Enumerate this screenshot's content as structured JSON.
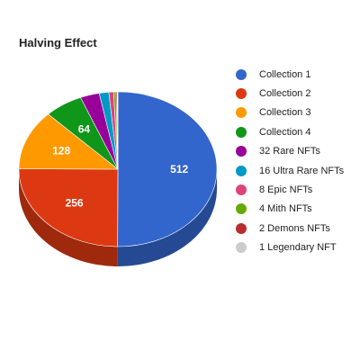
{
  "chart_data": {
    "type": "pie",
    "title": "Halving Effect",
    "three_d": true,
    "legend_position": "right",
    "slices": [
      {
        "name": "Collection 1",
        "value": 512,
        "label": "512",
        "color": "#3366cc"
      },
      {
        "name": "Collection 2",
        "value": 256,
        "label": "256",
        "color": "#dc3912"
      },
      {
        "name": "Collection 3",
        "value": 128,
        "label": "128",
        "color": "#ff9900"
      },
      {
        "name": "Collection 4",
        "value": 64,
        "label": "64",
        "color": "#109618"
      },
      {
        "name": "32 Rare NFTs",
        "value": 32,
        "label": "",
        "color": "#990099"
      },
      {
        "name": "16 Ultra Rare NFTs",
        "value": 16,
        "label": "",
        "color": "#0099c6"
      },
      {
        "name": "8 Epic NFTs",
        "value": 8,
        "label": "",
        "color": "#dd4477"
      },
      {
        "name": "4 Mith NFTs",
        "value": 4,
        "label": "",
        "color": "#66aa00"
      },
      {
        "name": "2 Demons NFTs",
        "value": 2,
        "label": "",
        "color": "#b82e2e"
      },
      {
        "name": "1 Legendary NFT",
        "value": 1,
        "label": "",
        "color": "#cccccc"
      }
    ]
  }
}
